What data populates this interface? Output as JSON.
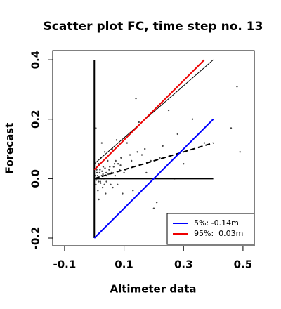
{
  "chart_data": {
    "type": "scatter",
    "title": "Scatter plot FC, time step no. 13",
    "xlabel": "Altimeter data",
    "ylabel": "Forecast",
    "xlim": [
      -0.14,
      0.538
    ],
    "ylim": [
      -0.226,
      0.431
    ],
    "xticks": [
      -0.1,
      0.1,
      0.3,
      0.5
    ],
    "yticks": [
      -0.2,
      {
        "value": 0,
        "label": "0.0"
      },
      0.2,
      0.4
    ],
    "legend": "bottom-right",
    "points": {
      "color": "#444444",
      "x": [
        0.002,
        0.005,
        0.008,
        0.01,
        0.012,
        0.015,
        0.018,
        0.02,
        0.022,
        0.025,
        0.028,
        0.03,
        0.033,
        0.035,
        0.038,
        0.04,
        0.045,
        0.05,
        0.055,
        0.06,
        0.065,
        0.07,
        0.075,
        0.08,
        0.09,
        0.1,
        0.11,
        0.12,
        0.13,
        0.14,
        0.15,
        0.17,
        0.19,
        0.21,
        0.23,
        0.25,
        0.28,
        0.3,
        0.33,
        0.37,
        0.46,
        0.48,
        0.49,
        0.004,
        0.009,
        0.014,
        0.019,
        0.024,
        0.029,
        0.034,
        0.042,
        0.052,
        0.062,
        0.072,
        0.085,
        0.095,
        0.13,
        0.16,
        0.2,
        0.27,
        0.006,
        0.011,
        0.016,
        0.021,
        0.026,
        0.031,
        0.036,
        0.041,
        0.047,
        0.058,
        0.068,
        0.078,
        0.088,
        0.105,
        0.125,
        0.145,
        0.175,
        0.22,
        0.005,
        0.015,
        0.025
      ],
      "values": [
        0.01,
        -0.02,
        0.03,
        0.0,
        -0.04,
        0.05,
        0.02,
        -0.01,
        0.07,
        0.01,
        -0.03,
        0.04,
        0.0,
        0.09,
        -0.05,
        0.02,
        0.06,
        0.03,
        -0.02,
        0.1,
        0.04,
        0.01,
        0.13,
        0.05,
        0.07,
        0.02,
        0.12,
        0.08,
        0.04,
        0.27,
        0.19,
        0.1,
        0.06,
        -0.08,
        0.11,
        0.23,
        0.15,
        0.05,
        0.2,
        0.12,
        0.17,
        0.31,
        0.09,
        0.0,
        0.02,
        -0.01,
        0.03,
        0.0,
        0.015,
        -0.02,
        0.01,
        0.04,
        -0.03,
        0.06,
        0.03,
        -0.05,
        -0.04,
        0.08,
        -0.1,
        0.0,
        -0.005,
        0.01,
        0.005,
        -0.015,
        0.025,
        0.0,
        0.035,
        -0.01,
        0.015,
        0.02,
        0.05,
        -0.02,
        0.045,
        0.03,
        0.06,
        0.09,
        0.02,
        0.07,
        0.17,
        -0.07,
        0.12
      ]
    },
    "series": [
      {
        "color": "#000000",
        "width": 2,
        "x": [
          0,
          0
        ],
        "values": [
          -0.2,
          0.4
        ]
      },
      {
        "color": "#000000",
        "width": 2,
        "x": [
          0,
          0.4
        ],
        "values": [
          0,
          0
        ]
      },
      {
        "color": "#000000",
        "width": 1,
        "x": [
          0,
          0.4
        ],
        "values": [
          0.05,
          0.4
        ]
      },
      {
        "color": "#000000",
        "width": 2,
        "dashed": true,
        "x": [
          0,
          0.4
        ],
        "values": [
          0,
          0.12
        ]
      },
      {
        "name": "5%: -0.14m",
        "color": "#0000ff",
        "width": 2,
        "x": [
          0,
          0.4
        ],
        "values": [
          -0.2,
          0.2
        ]
      },
      {
        "name": "95%:  0.03m",
        "color": "#ee0000",
        "width": 2,
        "x": [
          0,
          0.37
        ],
        "values": [
          0.03,
          0.4
        ]
      }
    ]
  }
}
